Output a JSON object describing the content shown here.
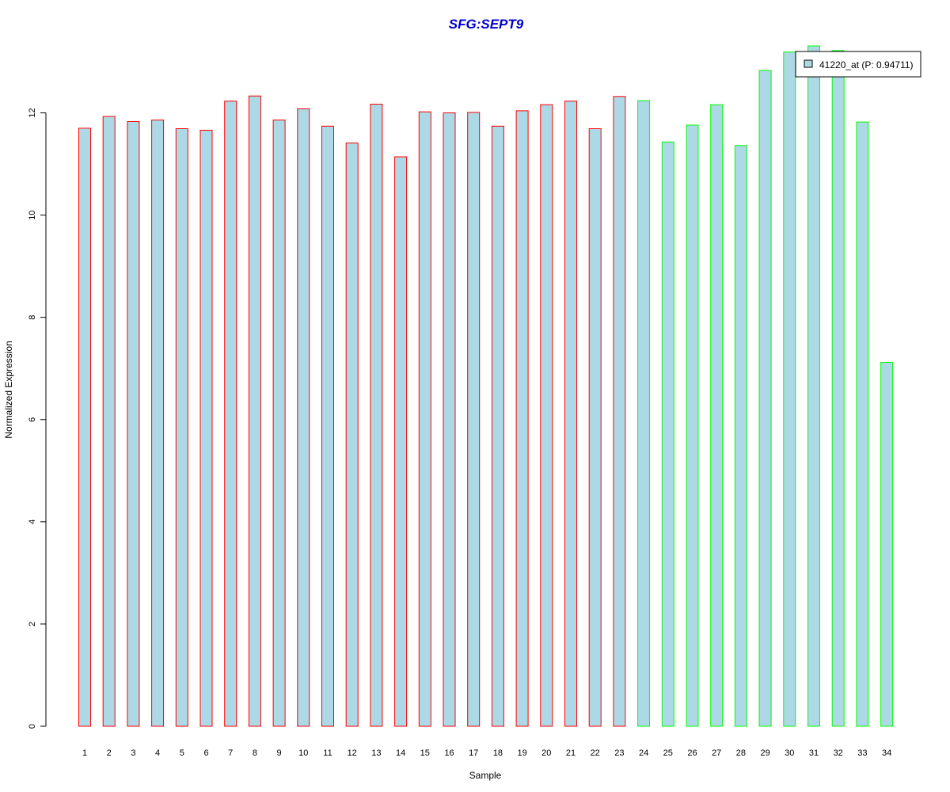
{
  "chart_data": {
    "type": "bar",
    "title": "SFG:SEPT9",
    "xlabel": "Sample",
    "ylabel": "Normalized Expression",
    "categories": [
      "1",
      "2",
      "3",
      "4",
      "5",
      "6",
      "7",
      "8",
      "9",
      "10",
      "11",
      "12",
      "13",
      "14",
      "15",
      "16",
      "17",
      "18",
      "19",
      "20",
      "21",
      "22",
      "23",
      "24",
      "25",
      "26",
      "27",
      "28",
      "29",
      "30",
      "31",
      "32",
      "33",
      "34"
    ],
    "yticks": [
      "0",
      "2",
      "4",
      "6",
      "8",
      "10",
      "12"
    ],
    "ylim": [
      0,
      13.4
    ],
    "series": [
      {
        "name": "41220_at (P: 0.94711)",
        "values": [
          11.7,
          11.93,
          11.83,
          11.86,
          11.69,
          11.66,
          12.23,
          12.33,
          11.86,
          12.08,
          11.74,
          11.41,
          12.17,
          11.14,
          12.02,
          12.0,
          12.01,
          11.74,
          12.04,
          12.16,
          12.23,
          11.69,
          12.32,
          12.24,
          11.43,
          11.76,
          12.16,
          11.36,
          12.83,
          13.19,
          13.31,
          13.22,
          11.82,
          7.12
        ],
        "groups": [
          "red",
          "red",
          "red",
          "red",
          "red",
          "red",
          "red",
          "red",
          "red",
          "red",
          "red",
          "red",
          "red",
          "red",
          "red",
          "red",
          "red",
          "red",
          "red",
          "red",
          "red",
          "red",
          "red",
          "green",
          "green",
          "green",
          "green",
          "green",
          "green",
          "green",
          "green",
          "green",
          "green",
          "green"
        ]
      }
    ],
    "colors": {
      "fill": "#add8e6",
      "border_red": "#ff0000",
      "border_green": "#00ff00",
      "title": "#0000cd"
    },
    "grid": false,
    "legend_position": "top-right"
  }
}
